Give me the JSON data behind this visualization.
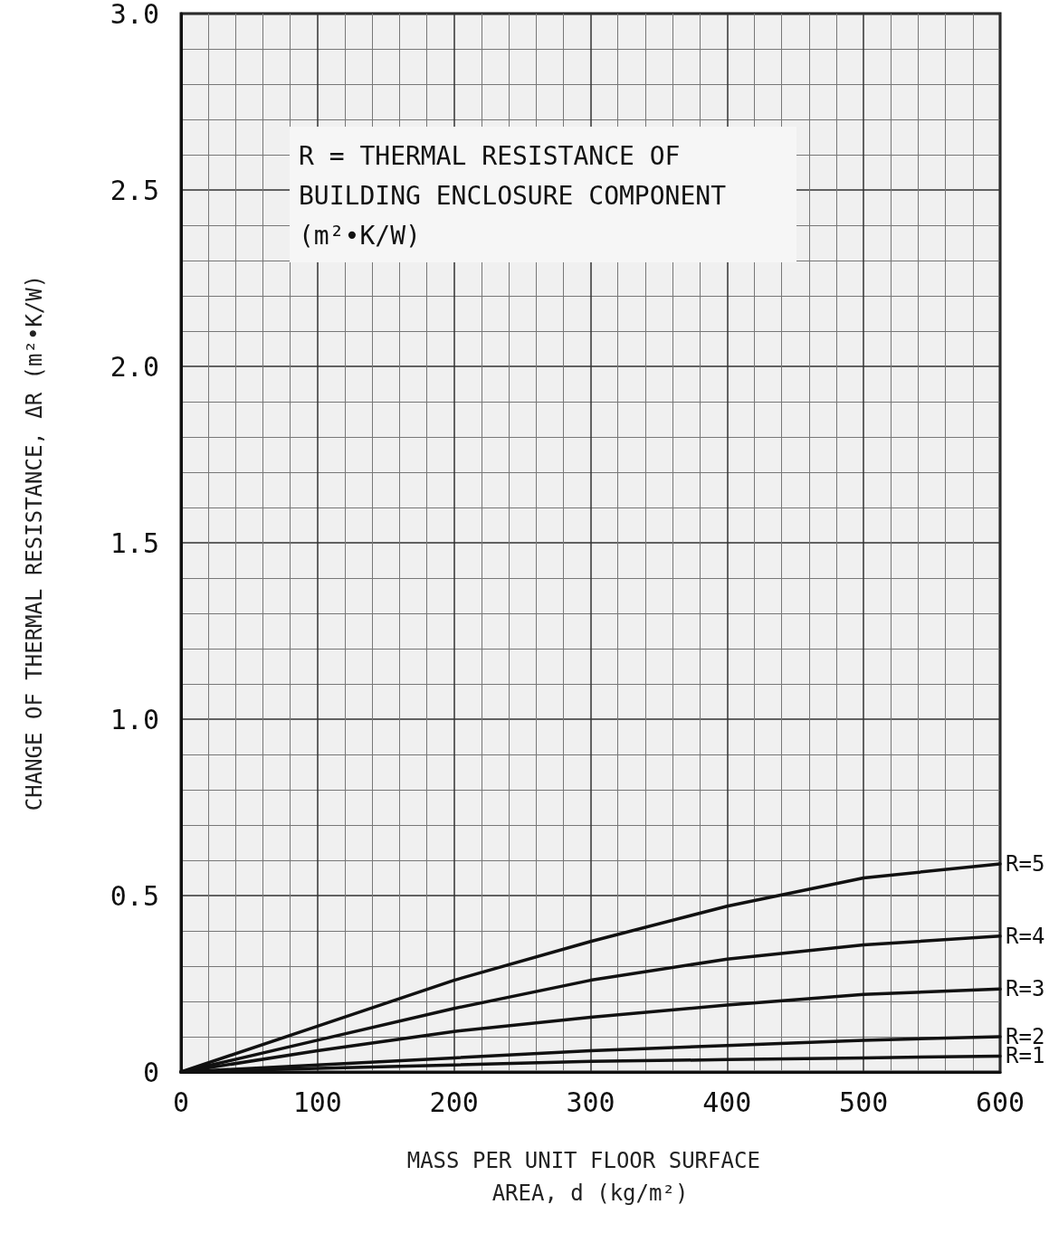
{
  "chart_data": {
    "type": "line",
    "xlabel": "MASS PER UNIT FLOOR SURFACE AREA, d (kg/m²)",
    "ylabel": "CHANGE OF THERMAL RESISTANCE, ΔR (m²•K/W)",
    "annotations": [
      "R = THERMAL RESISTANCE OF BUILDING ENCLOSURE COMPONENT (m²•K/W)"
    ],
    "x": [
      0,
      100,
      200,
      300,
      400,
      500,
      600
    ],
    "series": [
      {
        "name": "R=5",
        "color": "#111111",
        "values": [
          0,
          0.13,
          0.26,
          0.37,
          0.47,
          0.55,
          0.59
        ]
      },
      {
        "name": "R=4",
        "color": "#111111",
        "values": [
          0,
          0.09,
          0.18,
          0.26,
          0.32,
          0.36,
          0.385
        ]
      },
      {
        "name": "R=3",
        "color": "#111111",
        "values": [
          0,
          0.06,
          0.115,
          0.155,
          0.19,
          0.22,
          0.235
        ]
      },
      {
        "name": "R=2",
        "color": "#111111",
        "values": [
          0,
          0.02,
          0.04,
          0.06,
          0.075,
          0.09,
          0.1
        ]
      },
      {
        "name": "R=1",
        "color": "#111111",
        "values": [
          0,
          0.01,
          0.02,
          0.03,
          0.035,
          0.04,
          0.045
        ]
      }
    ],
    "xlim": [
      0,
      600
    ],
    "xticks": [
      0,
      100,
      200,
      300,
      400,
      500,
      600
    ],
    "ylim": [
      0,
      3
    ],
    "yticks": [
      0,
      0.5,
      {
        "value": 1,
        "label": "1.0"
      },
      1.5,
      {
        "value": 2,
        "label": "2.0"
      },
      2.5,
      {
        "value": 3,
        "label": "3.0"
      }
    ],
    "grid": true,
    "marker": "none",
    "line_style": "solid",
    "legend": false
  }
}
